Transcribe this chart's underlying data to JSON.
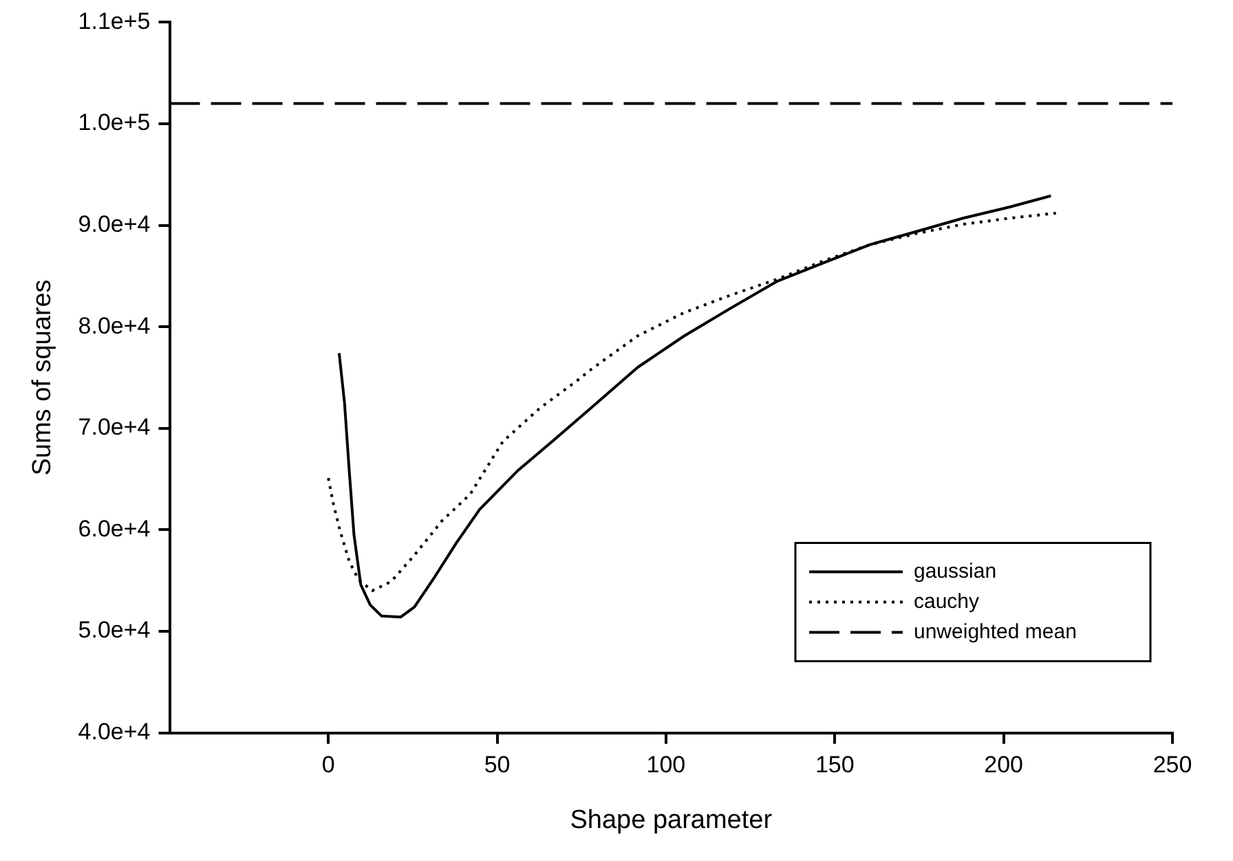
{
  "chart_data": {
    "type": "line",
    "xlabel": "Shape parameter",
    "ylabel": "Sums of squares",
    "xlim": [
      -47,
      250
    ],
    "xticks": [
      0,
      50,
      100,
      150,
      200,
      250
    ],
    "ylim": [
      40000,
      110000
    ],
    "yticks": [
      {
        "value": 40000,
        "label": "4.0e+4"
      },
      {
        "value": 50000,
        "label": "5.0e+4"
      },
      {
        "value": 60000,
        "label": "6.0e+4"
      },
      {
        "value": 70000,
        "label": "7.0e+4"
      },
      {
        "value": 80000,
        "label": "8.0e+4"
      },
      {
        "value": 90000,
        "label": "9.0e+4"
      },
      {
        "value": 100000,
        "label": "1.0e+5"
      },
      {
        "value": 110000,
        "label": "1.1e+5"
      }
    ],
    "grid": false,
    "legend": "bottom right",
    "marker": "none",
    "series": [
      {
        "name": "gaussian",
        "color": "#000000",
        "line_style": "solid",
        "x": [
          3.2,
          4.8,
          6.2,
          7.6,
          9.6,
          12.4,
          15.8,
          21.4,
          25.5,
          31,
          37.9,
          44.8,
          56,
          67,
          77.8,
          91.6,
          105.4,
          119,
          133,
          146.7,
          160.5,
          174.3,
          188,
          201.8,
          214
        ],
        "values": [
          77400,
          72500,
          65800,
          59500,
          54600,
          52600,
          51500,
          51400,
          52400,
          55100,
          58700,
          62000,
          65800,
          68900,
          72000,
          76000,
          79100,
          81800,
          84500,
          86300,
          88100,
          89400,
          90700,
          91800,
          92900
        ]
      },
      {
        "name": "cauchy",
        "color": "#000000",
        "line_style": "dotted",
        "x": [
          0,
          1.4,
          3.4,
          6.2,
          8.9,
          13,
          18.6,
          25.5,
          33.7,
          42,
          51.7,
          62.7,
          73.7,
          77.8,
          91.6,
          105.4,
          119,
          133,
          146.7,
          160.5,
          174.3,
          188,
          201.8,
          215.5
        ],
        "values": [
          65100,
          62700,
          60000,
          56900,
          55100,
          54000,
          54900,
          57500,
          60900,
          63500,
          68700,
          72000,
          74700,
          75800,
          79100,
          81400,
          83100,
          84700,
          86500,
          88100,
          89200,
          90100,
          90700,
          91200
        ]
      },
      {
        "name": "unweighted mean",
        "color": "#000000",
        "line_style": "dashed",
        "x": [
          -47,
          250
        ],
        "values": [
          102000,
          102000
        ]
      }
    ]
  }
}
